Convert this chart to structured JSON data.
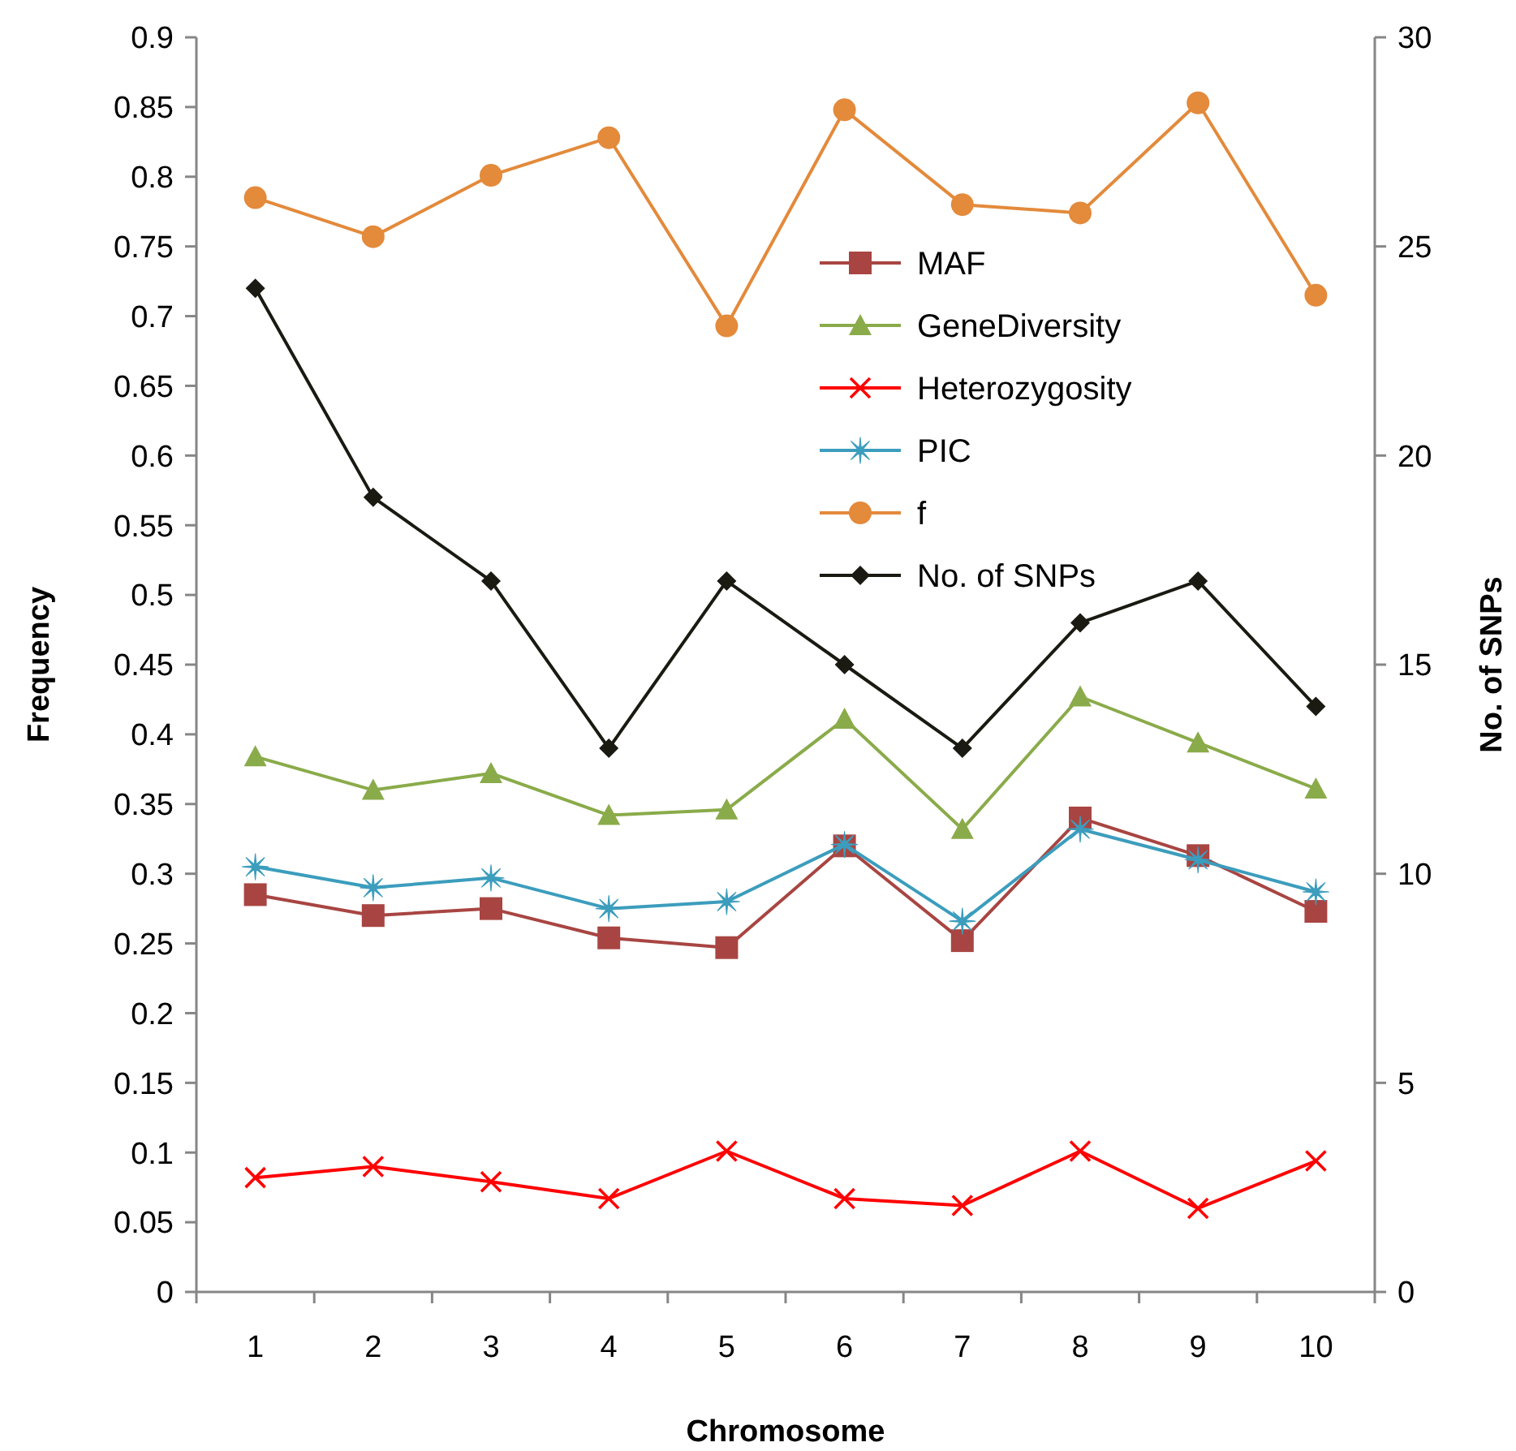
{
  "chart_data": {
    "type": "line",
    "xlabel": "Chromosome",
    "ylabel": "Frequency",
    "y2label": "No. of SNPs",
    "categories": [
      "1",
      "2",
      "3",
      "4",
      "5",
      "6",
      "7",
      "8",
      "9",
      "10"
    ],
    "ylim": [
      0,
      0.9
    ],
    "yticks": [
      0,
      0.05,
      0.1,
      0.15,
      0.2,
      0.25,
      0.3,
      0.35,
      0.4,
      0.45,
      0.5,
      0.55,
      0.6,
      0.65,
      0.7,
      0.75,
      0.8,
      0.85,
      0.9
    ],
    "y2lim": [
      0,
      30
    ],
    "y2ticks": [
      0,
      5,
      10,
      15,
      20,
      25,
      30
    ],
    "grid": false,
    "legend": "top right",
    "series": [
      {
        "name": "MAF",
        "color": "#a84542",
        "marker": "square",
        "values": [
          0.285,
          0.27,
          0.275,
          0.254,
          0.247,
          0.32,
          0.252,
          0.34,
          0.313,
          0.273
        ]
      },
      {
        "name": "GeneDiversity",
        "color": "#8aab4a",
        "marker": "triangle",
        "values": [
          0.384,
          0.36,
          0.372,
          0.342,
          0.346,
          0.411,
          0.332,
          0.427,
          0.394,
          0.361
        ]
      },
      {
        "name": "Heterozygosity",
        "color": "#ff0000",
        "marker": "cross",
        "values": [
          0.082,
          0.09,
          0.079,
          0.067,
          0.101,
          0.067,
          0.062,
          0.101,
          0.06,
          0.094
        ]
      },
      {
        "name": "PIC",
        "color": "#3c9dbd",
        "marker": "star",
        "values": [
          0.305,
          0.29,
          0.297,
          0.275,
          0.28,
          0.321,
          0.266,
          0.332,
          0.31,
          0.287
        ]
      },
      {
        "name": "f",
        "color": "#e38a3b",
        "marker": "circle",
        "values": [
          0.785,
          0.757,
          0.801,
          0.828,
          0.693,
          0.848,
          0.78,
          0.774,
          0.853,
          0.715
        ]
      },
      {
        "name": "No. of SNPs",
        "color": "#1a1a12",
        "marker": "diamond",
        "axis": "y2",
        "values": [
          24,
          19,
          17,
          13,
          17,
          15,
          13,
          16,
          17,
          14
        ]
      }
    ]
  }
}
